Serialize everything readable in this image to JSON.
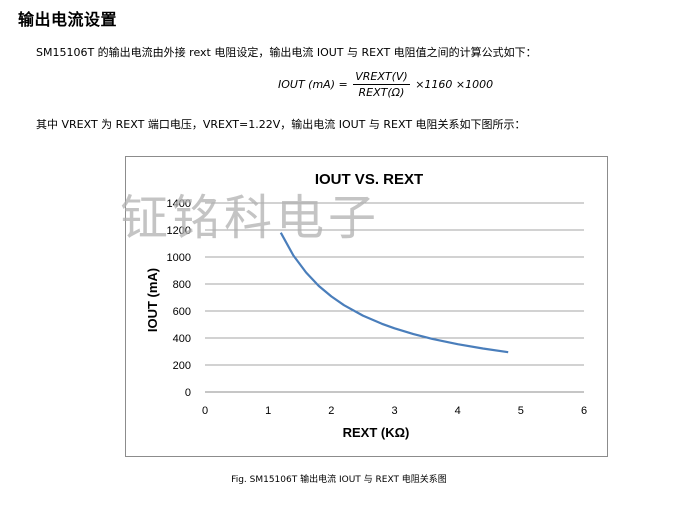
{
  "page": {
    "title": "输出电流设置",
    "intro": "SM15106T 的输出电流由外接 rext 电阻设定，输出电流 IOUT 与 REXT 电阻值之间的计算公式如下：",
    "formula": {
      "lhs": "IOUT (mA) =",
      "numerator": "VREXT(V)",
      "denominator": "REXT(Ω)",
      "rhs": "×1160 ×1000"
    },
    "description": "其中 VREXT 为 REXT 端口电压，VREXT=1.22V，输出电流 IOUT 与 REXT 电阻关系如下图所示：",
    "caption": "Fig. SM15106T 输出电流 IOUT 与 REXT 电阻关系图",
    "watermark": "钲铭科电子"
  },
  "chart_data": {
    "type": "line",
    "title": "IOUT VS. REXT",
    "xlabel": "REXT (KΩ)",
    "ylabel": "IOUT (mA)",
    "xlim": [
      0,
      6
    ],
    "ylim": [
      0,
      1400
    ],
    "xticks": [
      "0",
      "1",
      "2",
      "3",
      "4",
      "5",
      "6"
    ],
    "yticks": [
      "0",
      "200",
      "400",
      "600",
      "800",
      "1000",
      "1200",
      "1400"
    ],
    "grid": "horizontal",
    "line_color": "#4a7ebb",
    "series": [
      {
        "x": [
          1.2,
          1.4,
          1.6,
          1.8,
          2.0,
          2.2,
          2.5,
          2.8,
          3.0,
          3.3,
          3.6,
          4.0,
          4.4,
          4.8
        ],
        "values": [
          1180,
          1011,
          885,
          786,
          708,
          643,
          566,
          505,
          472,
          429,
          393,
          354,
          322,
          295
        ]
      }
    ]
  }
}
